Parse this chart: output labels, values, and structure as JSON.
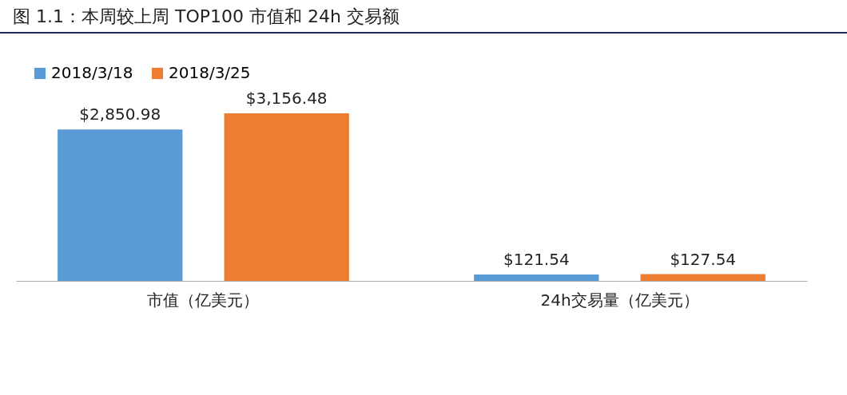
{
  "chart_data": {
    "type": "bar",
    "title": "图 1.1：本周较上周 TOP100 市值和 24h 交易额",
    "categories": [
      "市值（亿美元）",
      "24h交易量（亿美元）"
    ],
    "series": [
      {
        "name": "2018/3/18",
        "color": "#5b9bd5",
        "values": [
          2850.98,
          121.54
        ],
        "value_labels": [
          "$2,850.98",
          "$121.54"
        ]
      },
      {
        "name": "2018/3/25",
        "color": "#ed7d31",
        "values": [
          3156.48,
          127.54
        ],
        "value_labels": [
          "$3,156.48",
          "$127.54"
        ]
      }
    ],
    "legend": "top",
    "grid": false
  }
}
